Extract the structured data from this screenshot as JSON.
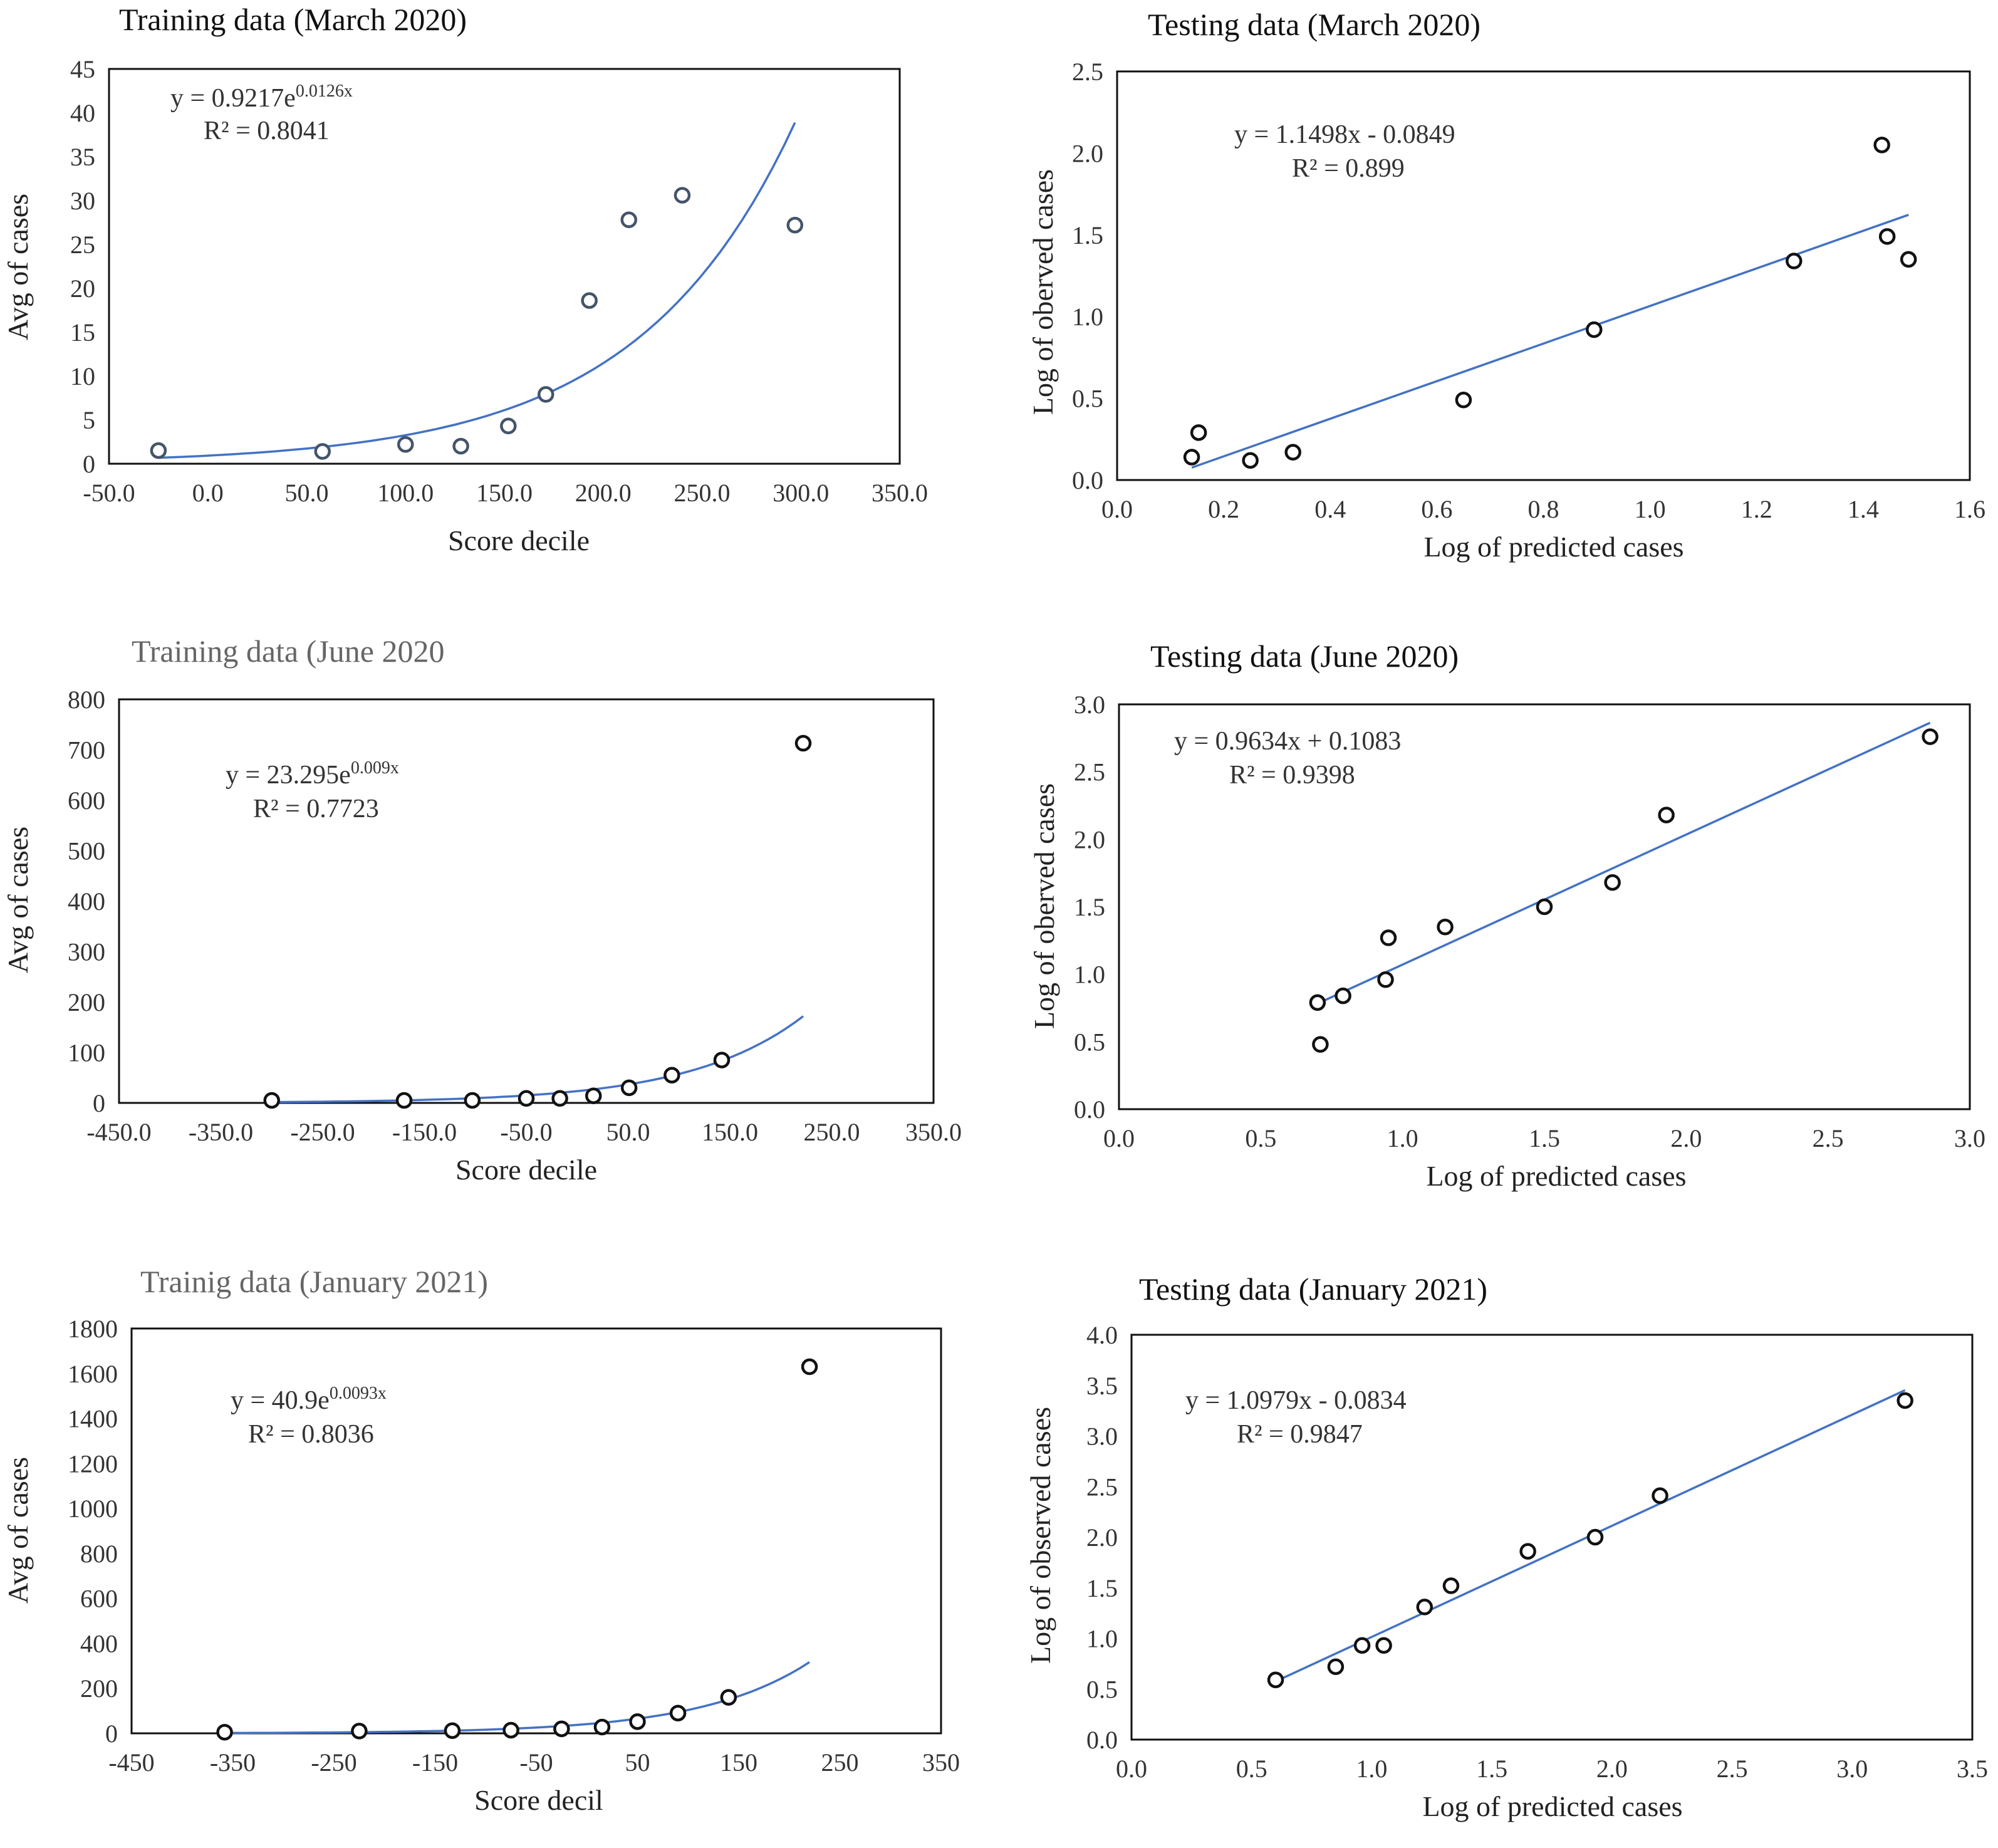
{
  "colors": {
    "trend": "#4472C4",
    "point_dark": "#111111",
    "point_light": "#44546A",
    "title_light": "#666666"
  },
  "chart_data": [
    {
      "type": "scatter",
      "title": "Training data (March 2020)",
      "xlabel": "Score decile",
      "ylabel": "Avg of cases",
      "xlim": [
        -50,
        350
      ],
      "ylim": [
        0,
        45
      ],
      "xticks": [
        -50,
        0,
        50,
        100,
        150,
        200,
        250,
        300,
        350
      ],
      "xtick_labels": [
        "-50.0",
        "0.0",
        "50.0",
        "100.0",
        "150.0",
        "200.0",
        "250.0",
        "300.0",
        "350.0"
      ],
      "yticks": [
        0,
        5,
        10,
        15,
        20,
        25,
        30,
        35,
        40,
        45
      ],
      "ytick_labels": [
        "0",
        "5",
        "10",
        "15",
        "20",
        "25",
        "30",
        "35",
        "40",
        "45"
      ],
      "x": [
        -25,
        58,
        100,
        128,
        152,
        171,
        193,
        213,
        240,
        297
      ],
      "y": [
        1.5,
        1.4,
        2.2,
        2.0,
        4.3,
        7.9,
        18.6,
        27.8,
        30.6,
        27.2
      ],
      "trendline": {
        "type": "exponential",
        "a": 0.9217,
        "b": 0.0126,
        "x_range": [
          -25,
          297
        ]
      },
      "equation": {
        "prefix": "y = 0.9217e",
        "exponent": "0.0126x",
        "r2": "R² = 0.8041"
      }
    },
    {
      "type": "scatter",
      "title": "Testing data (March 2020)",
      "xlabel": "Log of predicted cases",
      "ylabel": "Log of oberved cases",
      "xlim": [
        0,
        1.6
      ],
      "ylim": [
        0,
        2.5
      ],
      "xticks": [
        0,
        0.2,
        0.4,
        0.6,
        0.8,
        1.0,
        1.2,
        1.4,
        1.6
      ],
      "xtick_labels": [
        "0.0",
        "0.2",
        "0.4",
        "0.6",
        "0.8",
        "1.0",
        "1.2",
        "1.4",
        "1.6"
      ],
      "yticks": [
        0,
        0.5,
        1.0,
        1.5,
        2.0,
        2.5
      ],
      "ytick_labels": [
        "0.0",
        "0.5",
        "1.0",
        "1.5",
        "2.0",
        "2.5"
      ],
      "x": [
        0.14,
        0.153,
        0.25,
        0.33,
        0.65,
        0.895,
        1.27,
        1.435,
        1.445,
        1.485
      ],
      "y": [
        0.14,
        0.29,
        0.12,
        0.17,
        0.49,
        0.92,
        1.34,
        2.05,
        1.49,
        1.35
      ],
      "trendline": {
        "type": "linear",
        "m": 1.1498,
        "c": -0.0849,
        "x_range": [
          0.14,
          1.485
        ]
      },
      "equation": {
        "prefix": "y = 1.1498x - 0.0849",
        "exponent": "",
        "r2": "R² = 0.899"
      }
    },
    {
      "type": "scatter",
      "title": "Training data (June 2020",
      "xlabel": "Score decile",
      "ylabel": "Avg of cases",
      "xlim": [
        -450,
        350
      ],
      "ylim": [
        0,
        800
      ],
      "xticks": [
        -450,
        -350,
        -250,
        -150,
        -50,
        50,
        150,
        250,
        350
      ],
      "xtick_labels": [
        "-450.0",
        "-350.0",
        "-250.0",
        "-150.0",
        "-50.0",
        "50.0",
        "150.0",
        "250.0",
        "350.0"
      ],
      "yticks": [
        0,
        100,
        200,
        300,
        400,
        500,
        600,
        700,
        800
      ],
      "ytick_labels": [
        "0",
        "100",
        "200",
        "300",
        "400",
        "500",
        "600",
        "700",
        "800"
      ],
      "x": [
        -300,
        -170,
        -103,
        -50,
        -17,
        16,
        51,
        93,
        142,
        222
      ],
      "y": [
        5,
        5,
        5,
        9,
        9,
        14,
        30,
        55,
        85,
        713
      ],
      "trendline": {
        "type": "exponential",
        "a": 23.295,
        "b": 0.009,
        "x_range": [
          -300,
          222
        ]
      },
      "equation": {
        "prefix": "y = 23.295e",
        "exponent": "0.009x",
        "r2": "R² = 0.7723"
      }
    },
    {
      "type": "scatter",
      "title": "Testing data (June 2020)",
      "xlabel": "Log of predicted cases",
      "ylabel": "Log of oberved cases",
      "xlim": [
        0,
        3.0
      ],
      "ylim": [
        0,
        3.0
      ],
      "xticks": [
        0,
        0.5,
        1.0,
        1.5,
        2.0,
        2.5,
        3.0
      ],
      "xtick_labels": [
        "0.0",
        "0.5",
        "1.0",
        "1.5",
        "2.0",
        "2.5",
        "3.0"
      ],
      "yticks": [
        0,
        0.5,
        1.0,
        1.5,
        2.0,
        2.5,
        3.0
      ],
      "ytick_labels": [
        "0.0",
        "0.5",
        "1.0",
        "1.5",
        "2.0",
        "2.5",
        "3.0"
      ],
      "x": [
        0.7,
        0.71,
        0.79,
        0.94,
        0.95,
        1.15,
        1.5,
        1.74,
        1.93,
        2.86
      ],
      "y": [
        0.79,
        0.48,
        0.84,
        0.96,
        1.27,
        1.35,
        1.5,
        1.68,
        2.18,
        2.76
      ],
      "trendline": {
        "type": "linear",
        "m": 0.9634,
        "c": 0.1083,
        "x_range": [
          0.7,
          2.86
        ]
      },
      "equation": {
        "prefix": "y = 0.9634x + 0.1083",
        "exponent": "",
        "r2": "R² = 0.9398"
      }
    },
    {
      "type": "scatter",
      "title": "Trainig data (January 2021)",
      "xlabel": "Score decil",
      "ylabel": "Avg of cases",
      "xlim": [
        -450,
        350
      ],
      "ylim": [
        0,
        1800
      ],
      "xticks": [
        -450,
        -350,
        -250,
        -150,
        -50,
        50,
        150,
        250,
        350
      ],
      "xtick_labels": [
        "-450",
        "-350",
        "-250",
        "-150",
        "-50",
        "50",
        "150",
        "250",
        "350"
      ],
      "yticks": [
        0,
        200,
        400,
        600,
        800,
        1000,
        1200,
        1400,
        1600,
        1800
      ],
      "ytick_labels": [
        "0",
        "200",
        "400",
        "600",
        "800",
        "1000",
        "1200",
        "1400",
        "1600",
        "1800"
      ],
      "x": [
        -358,
        -225,
        -133,
        -75,
        -25,
        15,
        50,
        90,
        140,
        220
      ],
      "y": [
        5,
        10,
        12,
        14,
        20,
        28,
        52,
        90,
        160,
        1630
      ],
      "trendline": {
        "type": "exponential",
        "a": 40.9,
        "b": 0.0093,
        "x_range": [
          -358,
          220
        ]
      },
      "equation": {
        "prefix": "y = 40.9e",
        "exponent": "0.0093x",
        "r2": "R² = 0.8036"
      }
    },
    {
      "type": "scatter",
      "title": "Testing data (January 2021)",
      "xlabel": "Log of predicted cases",
      "ylabel": "Log of observed cases",
      "xlim": [
        0,
        3.5
      ],
      "ylim": [
        0,
        4.0
      ],
      "xticks": [
        0,
        0.5,
        1.0,
        1.5,
        2.0,
        2.5,
        3.0,
        3.5
      ],
      "xtick_labels": [
        "0.0",
        "0.5",
        "1.0",
        "1.5",
        "2.0",
        "2.5",
        "3.0",
        "3.5"
      ],
      "yticks": [
        0,
        0.5,
        1.0,
        1.5,
        2.0,
        2.5,
        3.0,
        3.5,
        4.0
      ],
      "ytick_labels": [
        "0.0",
        "0.5",
        "1.0",
        "1.5",
        "2.0",
        "2.5",
        "3.0",
        "3.5",
        "4.0"
      ],
      "x": [
        0.6,
        0.85,
        0.96,
        1.05,
        1.22,
        1.33,
        1.65,
        1.93,
        2.2,
        3.22
      ],
      "y": [
        0.59,
        0.72,
        0.93,
        0.93,
        1.31,
        1.52,
        1.86,
        2.0,
        2.41,
        3.35
      ],
      "trendline": {
        "type": "linear",
        "m": 1.0979,
        "c": -0.0834,
        "x_range": [
          0.6,
          3.22
        ]
      },
      "equation": {
        "prefix": "y = 1.0979x - 0.0834",
        "exponent": "",
        "r2": "R² = 0.9847"
      }
    }
  ]
}
